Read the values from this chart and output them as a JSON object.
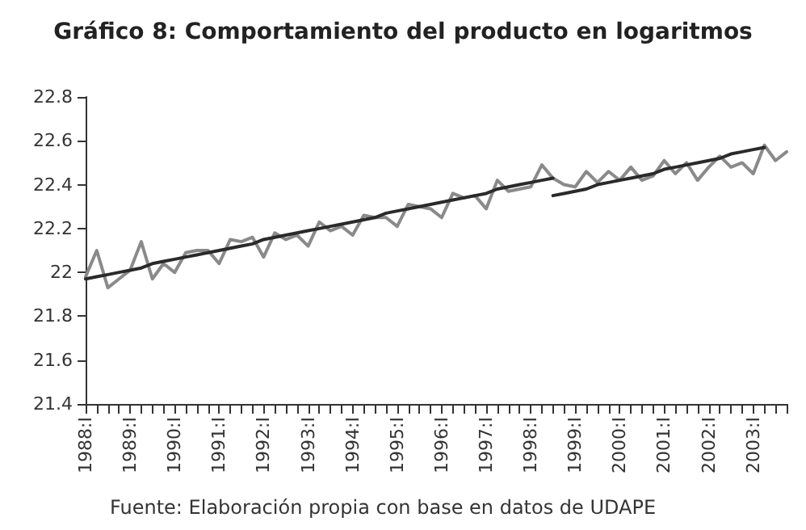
{
  "chart_data": {
    "type": "line",
    "title": "Gráfico 8: Comportamiento del producto en logaritmos",
    "annotations": [
      "Fuente: Elaboración propia con base en datos de UDAPE"
    ],
    "categories": [
      "1988:I",
      null,
      null,
      null,
      "1989:I",
      null,
      null,
      null,
      "1990:I",
      null,
      null,
      null,
      "1991:I",
      null,
      null,
      null,
      "1992:I",
      null,
      null,
      null,
      "1993:I",
      null,
      null,
      null,
      "1994:I",
      null,
      null,
      null,
      "1995:I",
      null,
      null,
      null,
      "1996:I",
      null,
      null,
      null,
      "1997:I",
      null,
      null,
      null,
      "1998:I",
      null,
      null,
      null,
      "1999:I",
      null,
      null,
      null,
      "2000:I",
      null,
      null,
      null,
      "2001:I",
      null,
      null,
      null,
      "2002:I",
      null,
      null,
      null,
      "2003:I",
      null,
      null,
      null
    ],
    "series": [
      {
        "color": "#8a8a8a",
        "values": [
          21.98,
          22.1,
          21.93,
          21.97,
          22.01,
          22.14,
          21.97,
          22.04,
          22.0,
          22.09,
          22.1,
          22.1,
          22.04,
          22.15,
          22.14,
          22.16,
          22.07,
          22.18,
          22.15,
          22.17,
          22.12,
          22.23,
          22.19,
          22.21,
          22.17,
          22.26,
          22.25,
          22.25,
          22.21,
          22.31,
          22.3,
          22.29,
          22.25,
          22.36,
          22.34,
          22.35,
          22.29,
          22.42,
          22.37,
          22.38,
          22.39,
          22.49,
          22.43,
          22.4,
          22.39,
          22.46,
          22.41,
          22.46,
          22.42,
          22.48,
          22.42,
          22.44,
          22.51,
          22.45,
          22.5,
          22.42,
          22.48,
          22.53,
          22.48,
          22.5,
          22.45,
          22.58,
          22.51,
          22.55
        ]
      },
      {
        "color": "#2a2a2a",
        "values": [
          21.97,
          21.98,
          21.99,
          22.0,
          22.01,
          22.02,
          22.04,
          22.05,
          22.06,
          22.07,
          22.08,
          22.09,
          22.1,
          22.11,
          22.12,
          22.13,
          22.15,
          22.16,
          22.17,
          22.18,
          22.19,
          22.2,
          22.21,
          22.22,
          22.23,
          22.24,
          22.25,
          22.27,
          22.28,
          22.29,
          22.3,
          22.31,
          22.32,
          22.33,
          22.34,
          22.35,
          22.36,
          22.38,
          22.39,
          22.4,
          22.41,
          22.42,
          22.43,
          null,
          null,
          null,
          null,
          null,
          null,
          null,
          null,
          null,
          null,
          null,
          null,
          null,
          null,
          null,
          null,
          null,
          null,
          null,
          null,
          null
        ]
      },
      {
        "color": "#2a2a2a",
        "values": [
          null,
          null,
          null,
          null,
          null,
          null,
          null,
          null,
          null,
          null,
          null,
          null,
          null,
          null,
          null,
          null,
          null,
          null,
          null,
          null,
          null,
          null,
          null,
          null,
          null,
          null,
          null,
          null,
          null,
          null,
          null,
          null,
          null,
          null,
          null,
          null,
          null,
          null,
          null,
          null,
          null,
          null,
          22.35,
          22.36,
          22.37,
          22.38,
          22.4,
          22.41,
          22.42,
          22.43,
          22.44,
          22.45,
          22.47,
          22.48,
          22.49,
          22.5,
          22.51,
          22.52,
          22.54,
          22.55,
          22.56,
          22.57,
          null,
          null
        ]
      }
    ],
    "ylim": [
      21.4,
      22.8
    ],
    "yticks": [
      21.4,
      21.6,
      21.8,
      22,
      22.2,
      22.4,
      22.6,
      22.8
    ],
    "grid": false,
    "marker": "none",
    "line_style": "solid"
  }
}
